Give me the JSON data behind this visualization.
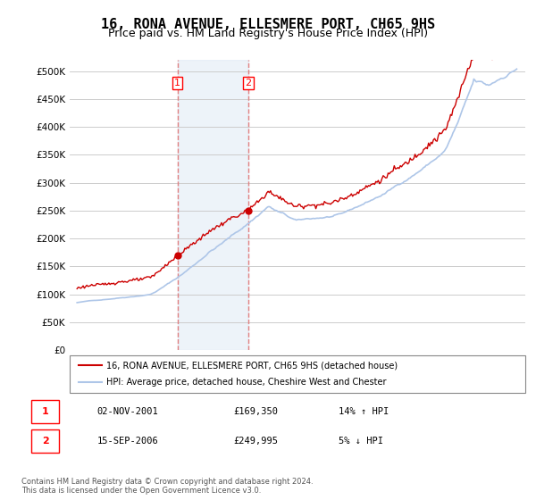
{
  "title": "16, RONA AVENUE, ELLESMERE PORT, CH65 9HS",
  "subtitle": "Price paid vs. HM Land Registry's House Price Index (HPI)",
  "title_fontsize": 11,
  "subtitle_fontsize": 9,
  "ylabel": "",
  "ylim": [
    0,
    520000
  ],
  "yticks": [
    0,
    50000,
    100000,
    150000,
    200000,
    250000,
    300000,
    350000,
    400000,
    450000,
    500000
  ],
  "background_color": "#ffffff",
  "plot_bg_color": "#ffffff",
  "grid_color": "#cccccc",
  "hpi_color": "#aec6e8",
  "price_color": "#cc0000",
  "sale1_date": "2001-11-02",
  "sale1_price": 169350,
  "sale1_label": "1",
  "sale1_hpi_pct": "14% ↑ HPI",
  "sale2_date": "2006-09-15",
  "sale2_price": 249995,
  "sale2_label": "2",
  "sale2_hpi_pct": "5% ↓ HPI",
  "legend_line1": "16, RONA AVENUE, ELLESMERE PORT, CH65 9HS (detached house)",
  "legend_line2": "HPI: Average price, detached house, Cheshire West and Chester",
  "footer": "Contains HM Land Registry data © Crown copyright and database right 2024.\nThis data is licensed under the Open Government Licence v3.0.",
  "transaction_info": [
    {
      "label": "1",
      "date": "02-NOV-2001",
      "price": "£169,350",
      "hpi": "14% ↑ HPI"
    },
    {
      "label": "2",
      "date": "15-SEP-2006",
      "price": "£249,995",
      "hpi": "5% ↓ HPI"
    }
  ]
}
